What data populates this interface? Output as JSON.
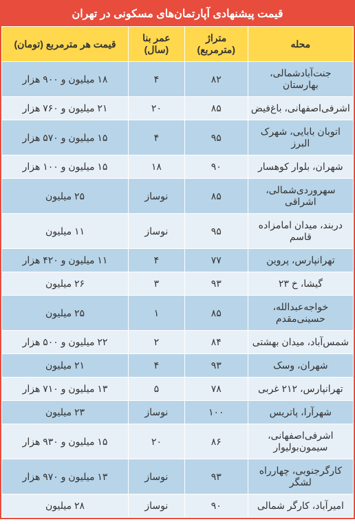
{
  "title": "قیمت پیشنهادی آپارتمان‌های مسکونی در تهران",
  "columns": {
    "neighborhood": "محله",
    "area": "متراژ (مترمربع)",
    "age": "عمر بنا (سال)",
    "price": "قیمت هر مترمربع (تومان)"
  },
  "colors": {
    "title_bg": "#e74c3c",
    "title_text": "#ffffff",
    "header_bg": "#ffd84d",
    "header_text": "#333333",
    "row_odd_bg": "#b8d4e8",
    "row_even_bg": "#e8f0f7",
    "cell_text": "#333333",
    "border": "#ffffff"
  },
  "rows": [
    {
      "neighborhood": "جنت‌آبادشمالی، بهارستان",
      "area": "۸۲",
      "age": "۴",
      "price": "۱۸ میلیون و ۹۰۰ هزار"
    },
    {
      "neighborhood": "اشرفی‌اصفهانی، باغ‌فیض",
      "area": "۸۵",
      "age": "۲۰",
      "price": "۲۱ میلیون و ۷۶۰ هزار"
    },
    {
      "neighborhood": "اتوبان بابایی، شهرک البرز",
      "area": "۹۵",
      "age": "۴",
      "price": "۱۵ میلیون و ۵۷۰ هزار"
    },
    {
      "neighborhood": "شهران، بلوار کوهسار",
      "area": "۹۰",
      "age": "۱۸",
      "price": "۱۵ میلیون و ۱۰۰ هزار"
    },
    {
      "neighborhood": "سهروردی‌شمالی، اشراقی",
      "area": "۸۵",
      "age": "نوساز",
      "price": "۲۵ میلیون"
    },
    {
      "neighborhood": "دربند، میدان امامزاده قاسم",
      "area": "۹۵",
      "age": "نوساز",
      "price": "۱۱ میلیون"
    },
    {
      "neighborhood": "تهرانپارس، پروین",
      "area": "۷۷",
      "age": "۴",
      "price": "۱۱ میلیون و ۴۲۰ هزار"
    },
    {
      "neighborhood": "گیشا، خ ۲۳",
      "area": "۹۳",
      "age": "۳",
      "price": "۲۶ میلیون"
    },
    {
      "neighborhood": "خواجه‌عبدالله، حسینی‌مقدم",
      "area": "۸۵",
      "age": "۱",
      "price": "۲۵ میلیون"
    },
    {
      "neighborhood": "شمس‌آباد، میدان بهشتی",
      "area": "۸۴",
      "age": "۲",
      "price": "۲۲ میلیون و ۵۰۰ هزار"
    },
    {
      "neighborhood": "شهران، وسک",
      "area": "۹۳",
      "age": "۴",
      "price": "۲۱ میلیون"
    },
    {
      "neighborhood": "تهرانپارس، ۲۱۲ غربی",
      "area": "۷۸",
      "age": "۵",
      "price": "۱۳ میلیون و ۷۱۰ هزار"
    },
    {
      "neighborhood": "شهرآرا، پاتریس",
      "area": "۱۰۰",
      "age": "نوساز",
      "price": "۲۳ میلیون"
    },
    {
      "neighborhood": "اشرفی‌اصفهانی، سیمون‌بولیوار",
      "area": "۸۶",
      "age": "۲۰",
      "price": "۱۵ میلیون و ۹۳۰ هزار"
    },
    {
      "neighborhood": "کارگرجنوبی، چهارراه لشگر",
      "area": "۹۳",
      "age": "نوساز",
      "price": "۱۳ میلیون و ۹۷۰ هزار"
    },
    {
      "neighborhood": "امیرآباد، کارگر شمالی",
      "area": "۹۰",
      "age": "نوساز",
      "price": "۲۸ میلیون"
    }
  ]
}
